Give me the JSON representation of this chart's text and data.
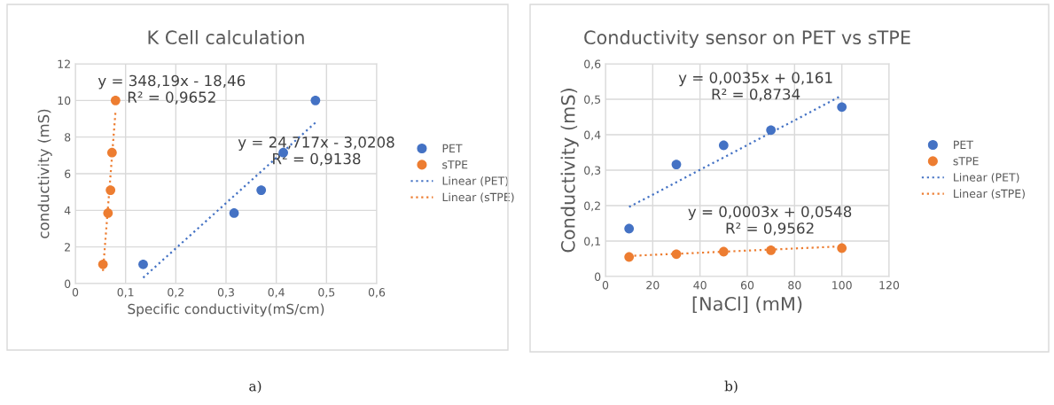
{
  "chart_data": [
    {
      "type": "scatter",
      "title": "K Cell calculation",
      "xlabel": "Specific conductivity(mS/cm)",
      "ylabel": "conductivity (mS)",
      "xlim": [
        0,
        0.6
      ],
      "xticks": [
        0,
        {
          "value": 0.1,
          "label": "0,1"
        },
        {
          "value": 0.2,
          "label": "0,2"
        },
        {
          "value": 0.3,
          "label": "0,3"
        },
        {
          "value": 0.4,
          "label": "0,4"
        },
        {
          "value": 0.5,
          "label": "0,5"
        },
        {
          "value": 0.6,
          "label": "0,6"
        }
      ],
      "ylim": [
        0,
        12
      ],
      "yticks": [
        0,
        2,
        4,
        6,
        8,
        10,
        12
      ],
      "grid": true,
      "legend": "right",
      "series": [
        {
          "name": "PET",
          "marker": "circle",
          "color": "#4472c4",
          "x": [
            0.135,
            0.316,
            0.37,
            0.414,
            0.478
          ],
          "values": [
            1.05,
            3.85,
            5.1,
            7.15,
            10
          ]
        },
        {
          "name": "sTPE",
          "marker": "circle",
          "color": "#ed7d31",
          "x": [
            0.055,
            0.065,
            0.07,
            0.073,
            0.08
          ],
          "values": [
            1.05,
            3.85,
            5.1,
            7.15,
            10
          ]
        },
        {
          "name": "Linear (PET)",
          "type": "line",
          "line_style": "dotted",
          "color": "#4472c4",
          "x": [
            0.135,
            0.478
          ],
          "values": [
            0.32,
            8.79
          ]
        },
        {
          "name": "Linear (sTPE)",
          "type": "line",
          "line_style": "dotted",
          "color": "#ed7d31",
          "x": [
            0.055,
            0.08
          ],
          "values": [
            0.69,
            9.4
          ]
        }
      ],
      "annotations": [
        "y = 348,19x - 18,46\nR² = 0,9652",
        "y = 24,717x - 3,0208\nR² = 0,9138",
        "a)"
      ]
    },
    {
      "type": "scatter",
      "title": "Conductivity sensor on PET vs sTPE",
      "xlabel": "[NaCl] (mM)",
      "ylabel": "Conductivity (mS)",
      "xlim": [
        0,
        120
      ],
      "xticks": [
        0,
        20,
        40,
        60,
        80,
        100,
        120
      ],
      "ylim": [
        0,
        0.6
      ],
      "yticks": [
        0,
        {
          "value": 0.1,
          "label": "0,1"
        },
        {
          "value": 0.2,
          "label": "0,2"
        },
        {
          "value": 0.3,
          "label": "0,3"
        },
        {
          "value": 0.4,
          "label": "0,4"
        },
        {
          "value": 0.5,
          "label": "0,5"
        },
        {
          "value": 0.6,
          "label": "0,6"
        }
      ],
      "grid": true,
      "legend": "right",
      "series": [
        {
          "name": "PET",
          "marker": "circle",
          "color": "#4472c4",
          "x": [
            10,
            30,
            50,
            70,
            100
          ],
          "values": [
            0.135,
            0.316,
            0.37,
            0.413,
            0.478
          ]
        },
        {
          "name": "sTPE",
          "marker": "circle",
          "color": "#ed7d31",
          "x": [
            10,
            30,
            50,
            70,
            100
          ],
          "values": [
            0.055,
            0.063,
            0.07,
            0.074,
            0.08
          ]
        },
        {
          "name": "Linear (PET)",
          "type": "line",
          "line_style": "dotted",
          "color": "#4472c4",
          "x": [
            10,
            99
          ],
          "values": [
            0.196,
            0.507
          ]
        },
        {
          "name": "Linear (sTPE)",
          "type": "line",
          "line_style": "dotted",
          "color": "#ed7d31",
          "x": [
            10,
            100
          ],
          "values": [
            0.058,
            0.085
          ]
        }
      ],
      "annotations": [
        "y = 0,0035x + 0,161\nR² = 0,8734",
        "y = 0,0003x + 0,0548\nR² = 0,9562",
        "b)"
      ]
    }
  ]
}
